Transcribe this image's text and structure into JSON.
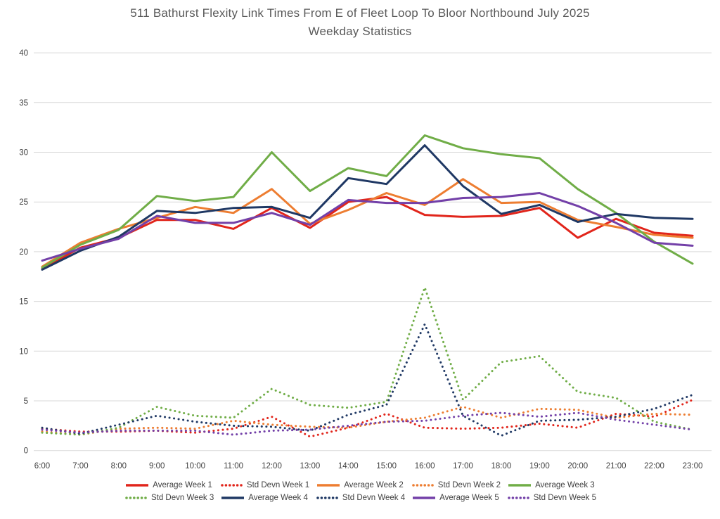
{
  "title": {
    "line1": "511 Bathurst Flexity Link Times From E of Fleet Loop To Bloor Northbound July 2025",
    "line2": "Weekday Statistics"
  },
  "chart_data": {
    "type": "line",
    "title": "511 Bathurst Flexity Link Times From E of Fleet Loop To Bloor Northbound July 2025 Weekday Statistics",
    "xlabel": "",
    "ylabel": "",
    "ylim": [
      0,
      40
    ],
    "ytick_interval": 5,
    "grid": "horizontal-only",
    "gridline_color": "#d9d9d9",
    "axis_label_color": "#404040",
    "legend_position": "bottom",
    "x_categories": [
      "6:00",
      "7:00",
      "8:00",
      "9:00",
      "10:00",
      "11:00",
      "12:00",
      "13:00",
      "14:00",
      "15:00",
      "16:00",
      "17:00",
      "18:00",
      "19:00",
      "20:00",
      "21:00",
      "22:00",
      "23:00"
    ],
    "series": [
      {
        "name": "Average Week 1",
        "color": "#e1251b",
        "style": "solid",
        "values": [
          18.3,
          20.4,
          21.4,
          23.2,
          23.2,
          22.3,
          24.4,
          22.4,
          25.0,
          25.5,
          23.7,
          23.5,
          23.6,
          24.4,
          21.4,
          23.3,
          21.9,
          21.6
        ]
      },
      {
        "name": "Std Devn Week 1",
        "color": "#e1251b",
        "style": "dotted",
        "values": [
          2.2,
          1.9,
          1.9,
          2.0,
          1.8,
          2.2,
          3.4,
          1.4,
          2.3,
          3.7,
          2.3,
          2.2,
          2.3,
          2.7,
          2.3,
          3.7,
          3.4,
          5.1
        ]
      },
      {
        "name": "Average Week 2",
        "color": "#ed7d31",
        "style": "solid",
        "values": [
          18.5,
          20.9,
          22.3,
          23.4,
          24.5,
          23.9,
          26.3,
          22.8,
          24.2,
          25.9,
          24.7,
          27.3,
          24.9,
          25.0,
          23.2,
          22.5,
          21.7,
          21.4
        ]
      },
      {
        "name": "Std Devn Week 2",
        "color": "#ed7d31",
        "style": "dotted",
        "values": [
          1.9,
          1.6,
          2.2,
          2.3,
          2.2,
          3.0,
          2.6,
          2.4,
          2.3,
          2.9,
          3.3,
          4.4,
          3.3,
          4.2,
          4.1,
          3.3,
          3.7,
          3.6
        ]
      },
      {
        "name": "Average Week 3",
        "color": "#70ad47",
        "style": "solid",
        "values": [
          18.4,
          20.7,
          22.2,
          25.6,
          25.1,
          25.5,
          30.0,
          26.1,
          28.4,
          27.6,
          31.7,
          30.4,
          29.8,
          29.4,
          26.3,
          23.9,
          21.0,
          18.8
        ]
      },
      {
        "name": "Std Devn Week 3",
        "color": "#70ad47",
        "style": "dotted",
        "values": [
          1.8,
          1.6,
          2.3,
          4.4,
          3.5,
          3.3,
          6.2,
          4.6,
          4.3,
          4.9,
          16.4,
          5.1,
          8.9,
          9.5,
          5.9,
          5.3,
          2.9,
          2.1
        ]
      },
      {
        "name": "Average Week 4",
        "color": "#1f3864",
        "style": "solid",
        "values": [
          18.2,
          20.1,
          21.5,
          24.1,
          23.9,
          24.4,
          24.5,
          23.4,
          27.4,
          26.8,
          30.7,
          26.6,
          23.8,
          24.7,
          23.0,
          23.8,
          23.4,
          23.3
        ]
      },
      {
        "name": "Std Devn Week 4",
        "color": "#1f3864",
        "style": "dotted",
        "values": [
          2.3,
          1.7,
          2.6,
          3.5,
          2.9,
          2.5,
          2.4,
          2.0,
          3.6,
          4.6,
          12.7,
          3.5,
          1.5,
          3.0,
          3.1,
          3.4,
          4.2,
          5.6
        ]
      },
      {
        "name": "Average Week 5",
        "color": "#7340a8",
        "style": "solid",
        "values": [
          19.1,
          20.3,
          21.3,
          23.6,
          22.9,
          22.9,
          23.9,
          22.7,
          25.2,
          24.9,
          24.9,
          25.4,
          25.5,
          25.9,
          24.6,
          22.9,
          20.9,
          20.6
        ]
      },
      {
        "name": "Std Devn Week 5",
        "color": "#7340a8",
        "style": "dotted",
        "values": [
          2.1,
          1.8,
          2.0,
          2.0,
          2.0,
          1.6,
          2.0,
          2.1,
          2.5,
          2.9,
          3.0,
          3.5,
          3.8,
          3.4,
          3.8,
          3.1,
          2.6,
          2.1
        ]
      }
    ],
    "legend_rows": [
      [
        0,
        1,
        2,
        3,
        4
      ],
      [
        5,
        6,
        7,
        8,
        9
      ]
    ]
  }
}
